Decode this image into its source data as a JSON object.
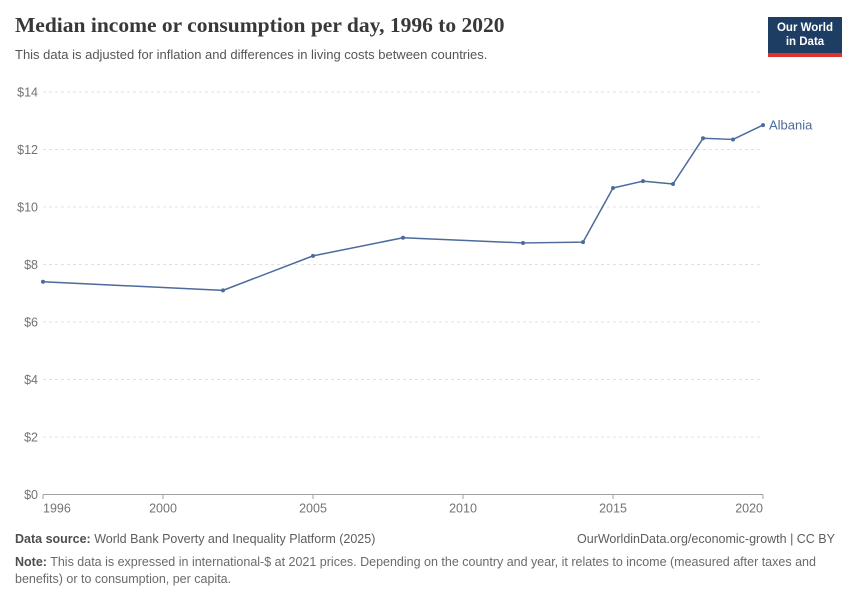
{
  "header": {
    "title": "Median income or consumption per day, 1996 to 2020",
    "subtitle": "This data is adjusted for inflation and differences in living costs between countries.",
    "logo": {
      "line1": "Our World",
      "line2": "in Data",
      "bg_color": "#1d3d63",
      "accent_color": "#e03131"
    }
  },
  "chart_data": {
    "type": "line",
    "title": "Median income or consumption per day, 1996 to 2020",
    "xlabel": "",
    "ylabel": "",
    "x_range": [
      1996,
      2020
    ],
    "x_ticks": [
      1996,
      2000,
      2005,
      2010,
      2015,
      2020
    ],
    "y_range": [
      0,
      14
    ],
    "y_ticks": [
      0,
      2,
      4,
      6,
      8,
      10,
      12,
      14
    ],
    "y_tick_prefix": "$",
    "grid": "horizontal-dashed",
    "legend_position": "end-of-line-label",
    "series": [
      {
        "name": "Albania",
        "color": "#4C6A9C",
        "x": [
          1996,
          2002,
          2005,
          2008,
          2012,
          2014,
          2015,
          2016,
          2017,
          2018,
          2019,
          2020
        ],
        "y": [
          7.4,
          7.1,
          8.3,
          8.93,
          8.75,
          8.78,
          10.66,
          10.9,
          10.8,
          12.39,
          12.35,
          12.85
        ]
      }
    ]
  },
  "footer": {
    "datasource_label": "Data source:",
    "datasource": "World Bank Poverty and Inequality Platform (2025)",
    "link": "OurWorldinData.org/economic-growth | CC BY",
    "note_label": "Note:",
    "note": "This data is expressed in international-$ at 2021 prices. Depending on the country and year, it relates to income (measured after taxes and benefits) or to consumption, per capita."
  }
}
